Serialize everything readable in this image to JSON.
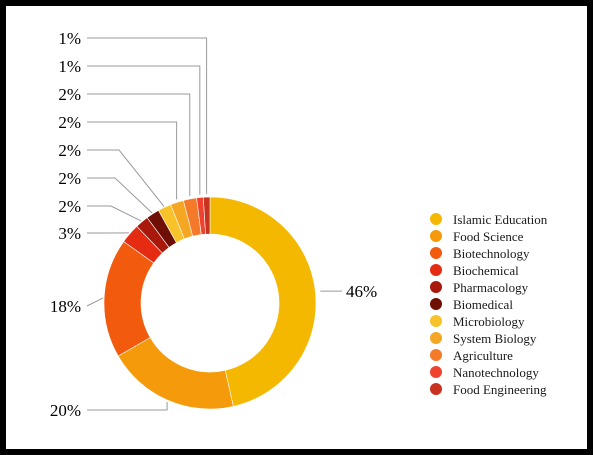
{
  "chart_data": {
    "type": "pie",
    "donut": true,
    "title": "",
    "legend_position": "right",
    "slices": [
      {
        "label": "Islamic Education",
        "percent": 46,
        "display": "46%",
        "color": "#F5B800"
      },
      {
        "label": "Food Science",
        "percent": 20,
        "display": "20%",
        "color": "#F59A0A"
      },
      {
        "label": "Biotechnology",
        "percent": 18,
        "display": "18%",
        "color": "#F25A0E"
      },
      {
        "label": "Biochemical",
        "percent": 3,
        "display": "3%",
        "color": "#E52B12"
      },
      {
        "label": "Pharmacology",
        "percent": 2,
        "display": "2%",
        "color": "#A8190B"
      },
      {
        "label": "Biomedical",
        "percent": 2,
        "display": "2%",
        "color": "#6E0E04"
      },
      {
        "label": "Microbiology",
        "percent": 2,
        "display": "2%",
        "color": "#F7C22A"
      },
      {
        "label": "System Biology",
        "percent": 2,
        "display": "2%",
        "color": "#F5A623"
      },
      {
        "label": "Agriculture",
        "percent": 2,
        "display": "2%",
        "color": "#F47A2A"
      },
      {
        "label": "Nanotechnology",
        "percent": 1,
        "display": "1%",
        "color": "#EF4330"
      },
      {
        "label": "Food Engineering",
        "percent": 1,
        "display": "1%",
        "color": "#C8321E"
      }
    ]
  }
}
